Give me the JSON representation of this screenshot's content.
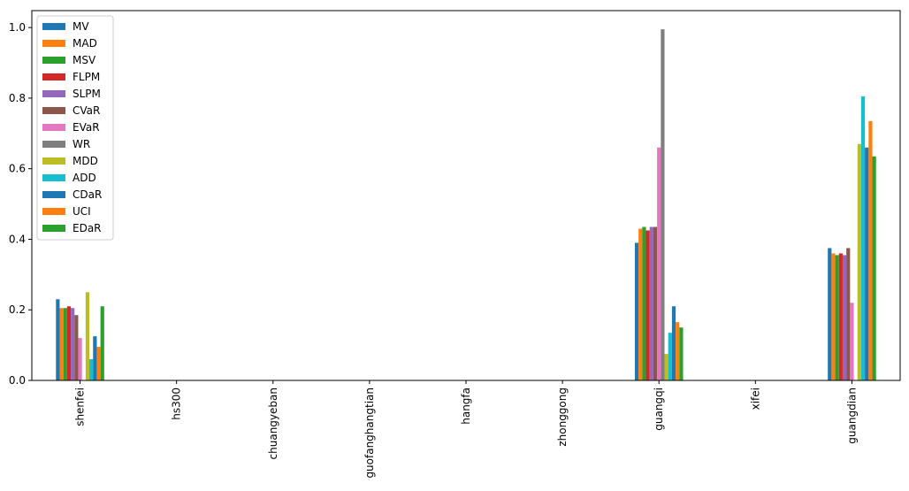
{
  "chart_data": {
    "type": "bar",
    "categories": [
      "shenfei",
      "hs300",
      "chuangyeban",
      "guofanghangtian",
      "hangfa",
      "zhonggong",
      "guangqi",
      "xifei",
      "guangdian"
    ],
    "series": [
      {
        "name": "MV",
        "color": "#1f77b4",
        "values": [
          0.23,
          0,
          0,
          0,
          0,
          0,
          0.39,
          0,
          0.375
        ]
      },
      {
        "name": "MAD",
        "color": "#ff7f0e",
        "values": [
          0.205,
          0,
          0,
          0,
          0,
          0,
          0.43,
          0,
          0.36
        ]
      },
      {
        "name": "MSV",
        "color": "#2ca02c",
        "values": [
          0.205,
          0,
          0,
          0,
          0,
          0,
          0.435,
          0,
          0.355
        ]
      },
      {
        "name": "FLPM",
        "color": "#d62728",
        "values": [
          0.21,
          0,
          0,
          0,
          0,
          0,
          0.425,
          0,
          0.36
        ]
      },
      {
        "name": "SLPM",
        "color": "#9467bd",
        "values": [
          0.205,
          0,
          0,
          0,
          0,
          0,
          0.435,
          0,
          0.355
        ]
      },
      {
        "name": "CVaR",
        "color": "#8c564b",
        "values": [
          0.185,
          0,
          0,
          0,
          0,
          0,
          0.435,
          0,
          0.375
        ]
      },
      {
        "name": "EVaR",
        "color": "#e377c2",
        "values": [
          0.12,
          0,
          0,
          0,
          0,
          0,
          0.66,
          0,
          0.22
        ]
      },
      {
        "name": "WR",
        "color": "#7f7f7f",
        "values": [
          0,
          0,
          0,
          0,
          0,
          0,
          0.995,
          0,
          0
        ]
      },
      {
        "name": "MDD",
        "color": "#bcbd22",
        "values": [
          0.25,
          0,
          0,
          0,
          0,
          0,
          0.075,
          0,
          0.67
        ]
      },
      {
        "name": "ADD",
        "color": "#17becf",
        "values": [
          0.06,
          0,
          0,
          0,
          0,
          0,
          0.135,
          0,
          0.805
        ]
      },
      {
        "name": "CDaR",
        "color": "#1f77b4",
        "values": [
          0.125,
          0,
          0,
          0,
          0,
          0,
          0.21,
          0,
          0.66
        ]
      },
      {
        "name": "UCI",
        "color": "#ff7f0e",
        "values": [
          0.095,
          0,
          0,
          0,
          0,
          0,
          0.165,
          0,
          0.735
        ]
      },
      {
        "name": "EDaR",
        "color": "#2ca02c",
        "values": [
          0.21,
          0,
          0,
          0,
          0,
          0,
          0.15,
          0,
          0.635
        ]
      }
    ],
    "ylim": [
      0,
      1.048
    ],
    "yticks": [
      {
        "value": 0,
        "label": "0.0"
      },
      0.2,
      0.4,
      0.6,
      0.8,
      {
        "value": 1,
        "label": "1.0"
      }
    ],
    "legend": "upper-left"
  }
}
